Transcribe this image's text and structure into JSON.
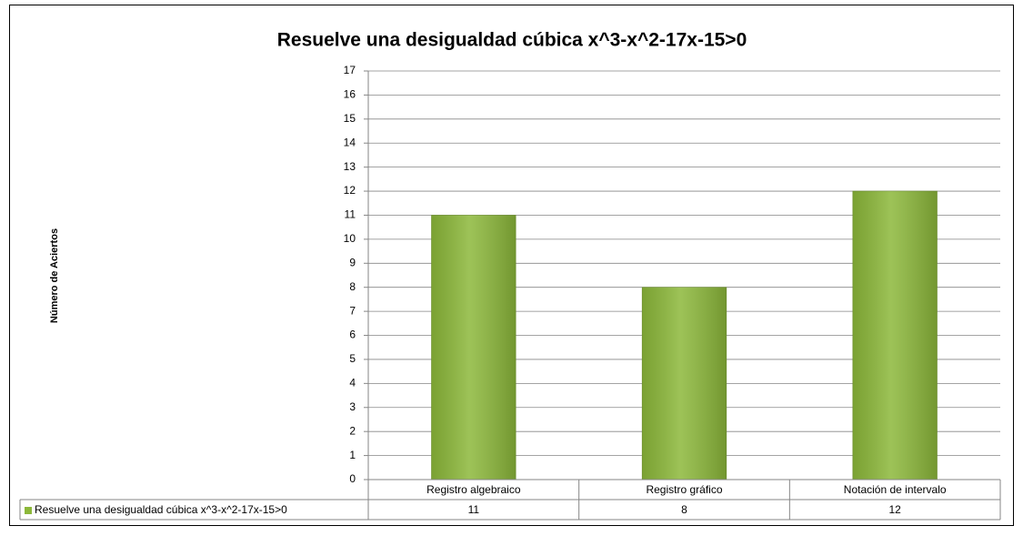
{
  "chart_data": {
    "type": "bar",
    "title": "Resuelve una desigualdad cúbica x^3-x^2-17x-15>0",
    "y_label": "Número de Aciertos",
    "categories": [
      "Registro algebraico",
      "Registro gráfico",
      "Notación de intervalo"
    ],
    "series": [
      {
        "name": "Resuelve una desigualdad cúbica x^3-x^2-17x-15>0",
        "color": "#8cb83a",
        "values": [
          11,
          8,
          12
        ]
      }
    ],
    "ylim": [
      0,
      17
    ],
    "yticks": [
      0,
      1,
      2,
      3,
      4,
      5,
      6,
      7,
      8,
      9,
      10,
      11,
      12,
      13,
      14,
      15,
      16,
      17
    ],
    "grid": true,
    "data_table": true
  }
}
